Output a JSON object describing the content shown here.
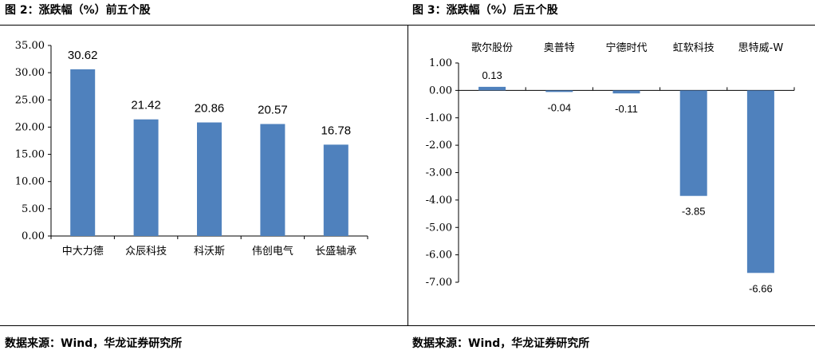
{
  "left": {
    "title": "图 2：涨跌幅（%）前五个股",
    "source": "数据来源：Wind，华龙证券研究所"
  },
  "right": {
    "title": "图 3：涨跌幅（%）后五个股",
    "source": "数据来源：Wind，华龙证券研究所"
  },
  "colors": {
    "bar": "#4F81BD",
    "axis": "#000000"
  },
  "chart_data": [
    {
      "type": "bar",
      "categories": [
        "中大力德",
        "众辰科技",
        "科沃斯",
        "伟创电气",
        "长盛轴承"
      ],
      "values": [
        30.62,
        21.42,
        20.86,
        20.57,
        16.78
      ],
      "value_labels": [
        "30.62",
        "21.42",
        "20.86",
        "20.57",
        "16.78"
      ],
      "ylim": [
        0,
        35
      ],
      "yticks": [
        "0.00",
        "5.00",
        "10.00",
        "15.00",
        "20.00",
        "25.00",
        "30.00",
        "35.00"
      ],
      "xlabel": "",
      "ylabel": ""
    },
    {
      "type": "bar",
      "categories": [
        "歌尔股份",
        "奥普特",
        "宁德时代",
        "虹软科技",
        "思特威-W"
      ],
      "values": [
        0.13,
        -0.04,
        -0.11,
        -3.85,
        -6.66
      ],
      "value_labels": [
        "0.13",
        "-0.04",
        "-0.11",
        "-3.85",
        "-6.66"
      ],
      "ylim": [
        -7,
        1
      ],
      "yticks": [
        "1.00",
        "0.00",
        "-1.00",
        "-2.00",
        "-3.00",
        "-4.00",
        "-5.00",
        "-6.00",
        "-7.00"
      ],
      "xlabel": "",
      "ylabel": ""
    }
  ]
}
